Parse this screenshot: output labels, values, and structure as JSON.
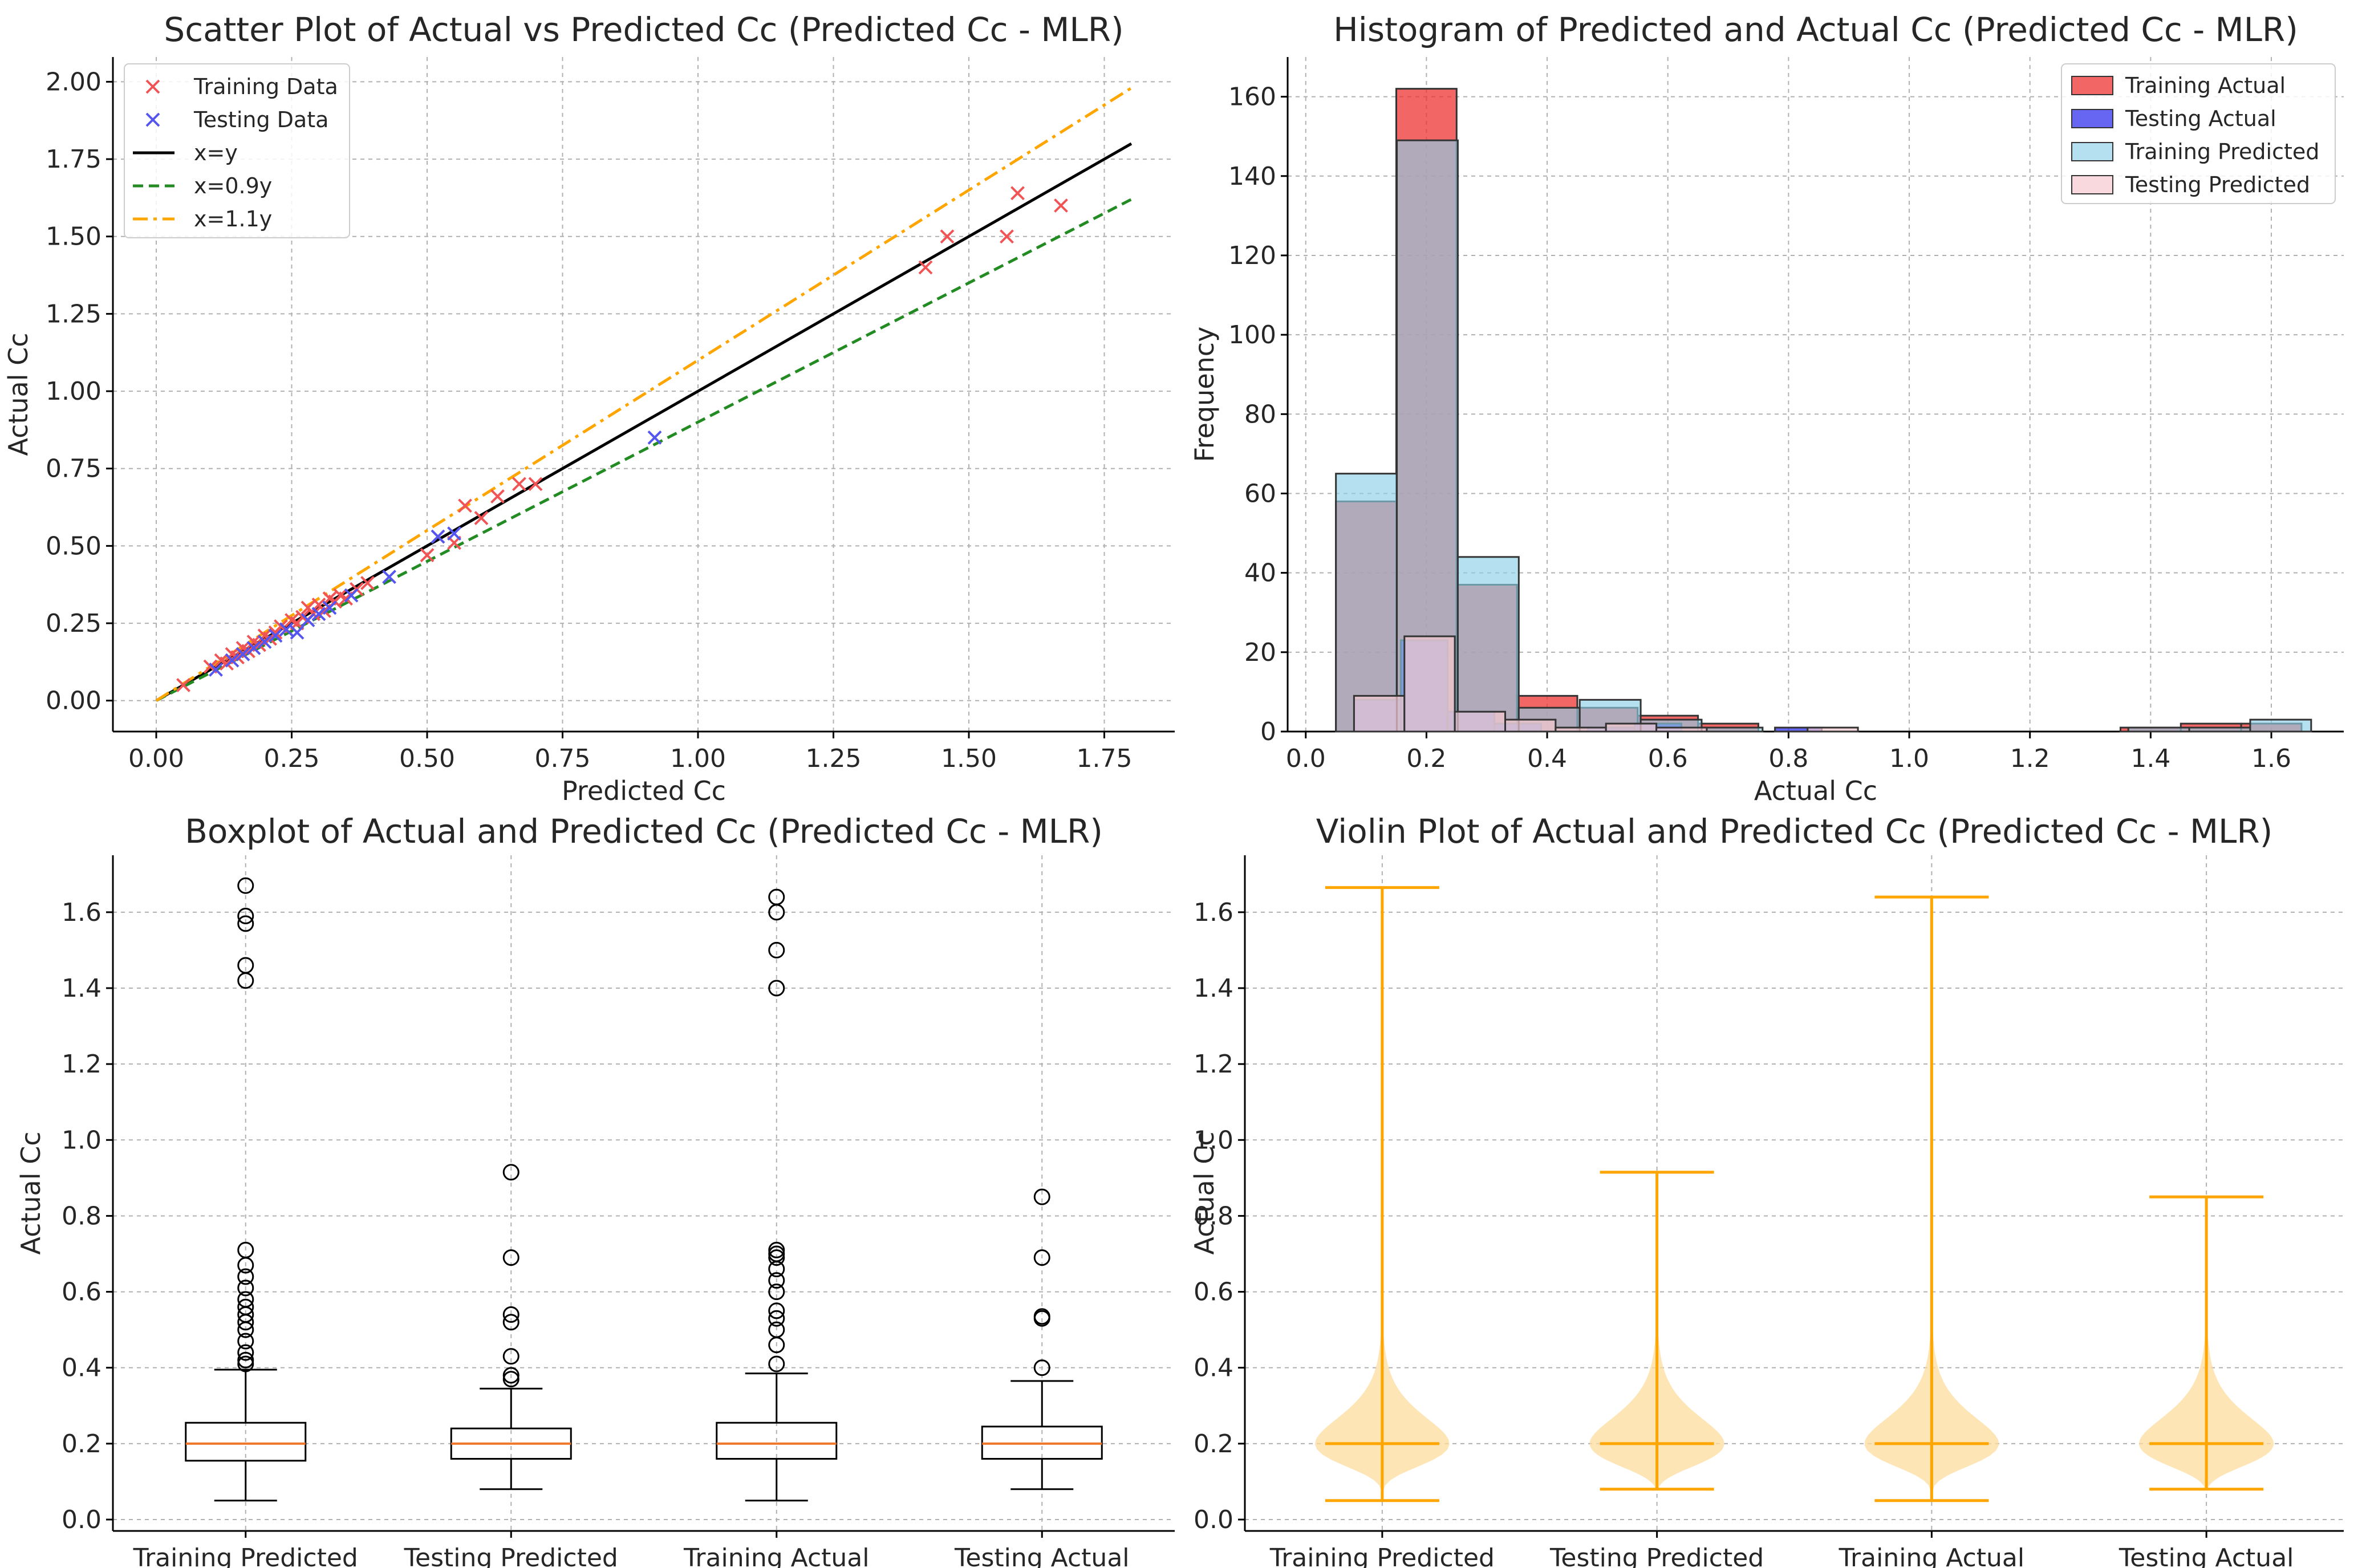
{
  "chart_data": [
    {
      "type": "scatter",
      "title": "Scatter Plot of Actual vs Predicted Cc (Predicted Cc - MLR)",
      "xlabel": "Predicted Cc",
      "ylabel": "Actual Cc",
      "xlim": [
        -0.08,
        1.88
      ],
      "ylim": [
        -0.1,
        2.08
      ],
      "xticks": [
        0.0,
        0.25,
        0.5,
        0.75,
        1.0,
        1.25,
        1.5,
        1.75
      ],
      "xtick_labels": [
        "0.00",
        "0.25",
        "0.50",
        "0.75",
        "1.00",
        "1.25",
        "1.50",
        "1.75"
      ],
      "yticks": [
        0.0,
        0.25,
        0.5,
        0.75,
        1.0,
        1.25,
        1.5,
        1.75,
        2.0
      ],
      "ytick_labels": [
        "0.00",
        "0.25",
        "0.50",
        "0.75",
        "1.00",
        "1.25",
        "1.50",
        "1.75",
        "2.00"
      ],
      "grid": true,
      "legend_position": "top-left",
      "series": [
        {
          "name": "Training Data",
          "marker": "x",
          "color": "#f05454",
          "x": [
            0.05,
            0.1,
            0.12,
            0.13,
            0.14,
            0.15,
            0.16,
            0.17,
            0.18,
            0.19,
            0.2,
            0.21,
            0.22,
            0.23,
            0.24,
            0.25,
            0.26,
            0.27,
            0.28,
            0.29,
            0.3,
            0.31,
            0.32,
            0.33,
            0.34,
            0.35,
            0.37,
            0.39,
            0.5,
            0.52,
            0.55,
            0.57,
            0.6,
            0.63,
            0.67,
            0.7,
            1.42,
            1.46,
            1.57,
            1.59,
            1.67
          ],
          "y": [
            0.05,
            0.11,
            0.13,
            0.12,
            0.15,
            0.14,
            0.17,
            0.16,
            0.19,
            0.18,
            0.21,
            0.2,
            0.22,
            0.24,
            0.23,
            0.26,
            0.25,
            0.27,
            0.3,
            0.28,
            0.31,
            0.29,
            0.33,
            0.32,
            0.34,
            0.33,
            0.36,
            0.38,
            0.47,
            0.53,
            0.51,
            0.63,
            0.59,
            0.66,
            0.7,
            0.7,
            1.4,
            1.5,
            1.5,
            1.64,
            1.6
          ]
        },
        {
          "name": "Testing Data",
          "marker": "x",
          "color": "#5555f0",
          "x": [
            0.11,
            0.14,
            0.16,
            0.18,
            0.2,
            0.22,
            0.24,
            0.26,
            0.28,
            0.3,
            0.32,
            0.36,
            0.43,
            0.52,
            0.55,
            0.92
          ],
          "y": [
            0.1,
            0.13,
            0.15,
            0.17,
            0.19,
            0.21,
            0.23,
            0.22,
            0.26,
            0.28,
            0.3,
            0.34,
            0.4,
            0.53,
            0.54,
            0.85
          ]
        },
        {
          "name": "x=y",
          "type": "line",
          "color": "#000000",
          "style": "solid",
          "x": [
            0.0,
            1.8
          ],
          "y": [
            0.0,
            1.8
          ]
        },
        {
          "name": "x=0.9y",
          "type": "line",
          "color": "#228b22",
          "style": "dashed",
          "x": [
            0.0,
            1.8
          ],
          "y": [
            0.0,
            1.62
          ]
        },
        {
          "name": "x=1.1y",
          "type": "line",
          "color": "#ffa500",
          "style": "dashdot",
          "x": [
            0.0,
            1.8
          ],
          "y": [
            0.0,
            1.98
          ]
        }
      ]
    },
    {
      "type": "bar",
      "subtype": "histogram",
      "title": "Histogram of Predicted and Actual Cc (Predicted Cc - MLR)",
      "xlabel": "Actual Cc",
      "ylabel": "Frequency",
      "xlim": [
        -0.03,
        1.72
      ],
      "ylim": [
        0,
        170
      ],
      "xticks": [
        0.0,
        0.2,
        0.4,
        0.6,
        0.8,
        1.0,
        1.2,
        1.4,
        1.6
      ],
      "xtick_labels": [
        "0.0",
        "0.2",
        "0.4",
        "0.6",
        "0.8",
        "1.0",
        "1.2",
        "1.4",
        "1.6"
      ],
      "yticks": [
        0,
        20,
        40,
        60,
        80,
        100,
        120,
        140,
        160
      ],
      "ytick_labels": [
        "0",
        "20",
        "40",
        "60",
        "80",
        "100",
        "120",
        "140",
        "160"
      ],
      "grid": true,
      "legend_position": "top-right",
      "series": [
        {
          "name": "Training Actual",
          "color": "#ee3333",
          "opacity": 0.75,
          "bin_edges": [
            0.05,
            0.15,
            0.25,
            0.35,
            0.45,
            0.55,
            0.65,
            0.75,
            0.85,
            0.95,
            1.05,
            1.15,
            1.25,
            1.35,
            1.45,
            1.55,
            1.65
          ],
          "counts": [
            58,
            162,
            37,
            9,
            6,
            4,
            2,
            0,
            0,
            0,
            0,
            0,
            0,
            1,
            2,
            2
          ]
        },
        {
          "name": "Testing Actual",
          "color": "#3333ee",
          "opacity": 0.75,
          "bin_edges": [
            0.08,
            0.1575,
            0.235,
            0.3125,
            0.39,
            0.4675,
            0.545,
            0.6225,
            0.7,
            0.7775,
            0.855
          ],
          "counts": [
            8,
            23,
            5,
            2,
            0,
            1,
            2,
            0,
            0,
            1
          ]
        },
        {
          "name": "Training Predicted",
          "color": "#8ecfe8",
          "opacity": 0.65,
          "bin_edges": [
            0.05,
            0.151,
            0.252,
            0.353,
            0.454,
            0.555,
            0.656,
            0.757,
            0.858,
            0.959,
            1.06,
            1.161,
            1.262,
            1.363,
            1.464,
            1.565,
            1.666
          ],
          "counts": [
            65,
            149,
            44,
            6,
            8,
            3,
            1,
            0,
            0,
            0,
            0,
            0,
            0,
            1,
            1,
            3
          ]
        },
        {
          "name": "Testing Predicted",
          "color": "#f7c9d0",
          "opacity": 0.7,
          "bin_edges": [
            0.08,
            0.1635,
            0.247,
            0.3305,
            0.414,
            0.4975,
            0.581,
            0.6645,
            0.748,
            0.8315,
            0.915
          ],
          "counts": [
            9,
            24,
            5,
            3,
            1,
            2,
            1,
            0,
            0,
            1
          ]
        }
      ]
    },
    {
      "type": "boxplot",
      "title": "Boxplot of Actual and Predicted Cc (Predicted Cc - MLR)",
      "xlabel": "",
      "ylabel": "Actual Cc",
      "ylim": [
        -0.03,
        1.75
      ],
      "yticks": [
        0.0,
        0.2,
        0.4,
        0.6,
        0.8,
        1.0,
        1.2,
        1.4,
        1.6
      ],
      "ytick_labels": [
        "0.0",
        "0.2",
        "0.4",
        "0.6",
        "0.8",
        "1.0",
        "1.2",
        "1.4",
        "1.6"
      ],
      "grid": true,
      "categories": [
        "Training Predicted",
        "Testing Predicted",
        "Training Actual",
        "Testing Actual"
      ],
      "boxes": [
        {
          "whisker_low": 0.05,
          "q1": 0.155,
          "median": 0.2,
          "q3": 0.255,
          "whisker_high": 0.395,
          "fliers": [
            0.41,
            0.42,
            0.44,
            0.47,
            0.5,
            0.52,
            0.54,
            0.56,
            0.58,
            0.61,
            0.64,
            0.67,
            0.71,
            1.42,
            1.46,
            1.57,
            1.59,
            1.67
          ]
        },
        {
          "whisker_low": 0.08,
          "q1": 0.16,
          "median": 0.2,
          "q3": 0.24,
          "whisker_high": 0.345,
          "fliers": [
            0.37,
            0.38,
            0.43,
            0.52,
            0.54,
            0.69,
            0.915
          ]
        },
        {
          "whisker_low": 0.05,
          "q1": 0.16,
          "median": 0.2,
          "q3": 0.255,
          "whisker_high": 0.385,
          "fliers": [
            0.41,
            0.46,
            0.5,
            0.53,
            0.55,
            0.6,
            0.63,
            0.66,
            0.69,
            0.7,
            0.71,
            1.4,
            1.5,
            1.6,
            1.64
          ]
        },
        {
          "whisker_low": 0.08,
          "q1": 0.16,
          "median": 0.2,
          "q3": 0.245,
          "whisker_high": 0.365,
          "fliers": [
            0.4,
            0.53,
            0.535,
            0.69,
            0.85
          ]
        }
      ]
    },
    {
      "type": "violin",
      "title": "Violin Plot of Actual and Predicted Cc (Predicted Cc - MLR)",
      "xlabel": "",
      "ylabel": "Actual Cc",
      "ylim": [
        -0.03,
        1.75
      ],
      "yticks": [
        0.0,
        0.2,
        0.4,
        0.6,
        0.8,
        1.0,
        1.2,
        1.4,
        1.6
      ],
      "ytick_labels": [
        "0.0",
        "0.2",
        "0.4",
        "0.6",
        "0.8",
        "1.0",
        "1.2",
        "1.4",
        "1.6"
      ],
      "grid": true,
      "categories": [
        "Training Predicted",
        "Testing Predicted",
        "Training Actual",
        "Testing Actual"
      ],
      "violins": [
        {
          "min": 0.05,
          "median": 0.2,
          "max": 1.665,
          "peak": 0.2,
          "spread": 0.06
        },
        {
          "min": 0.08,
          "median": 0.2,
          "max": 0.915,
          "peak": 0.2,
          "spread": 0.055
        },
        {
          "min": 0.05,
          "median": 0.2,
          "max": 1.64,
          "peak": 0.2,
          "spread": 0.06
        },
        {
          "min": 0.08,
          "median": 0.2,
          "max": 0.85,
          "peak": 0.2,
          "spread": 0.05
        }
      ]
    }
  ]
}
